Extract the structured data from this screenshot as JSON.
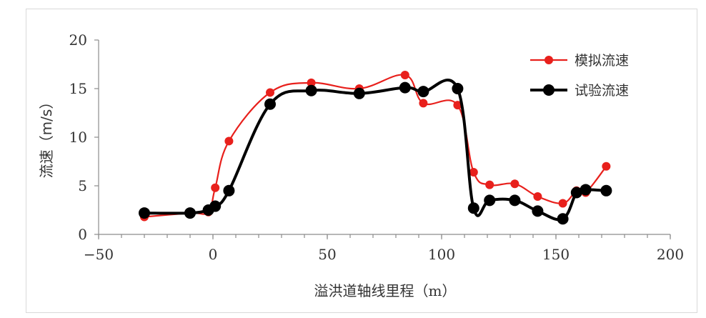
{
  "chart_data": {
    "type": "line",
    "xlabel": "溢洪道轴线里程（m）",
    "ylabel": "流速（m/s）",
    "xlim": [
      -50,
      200
    ],
    "ylim": [
      0,
      20
    ],
    "xticks": [
      -50,
      0,
      50,
      100,
      150,
      200
    ],
    "yticks": [
      0,
      5,
      10,
      15,
      20
    ],
    "xtick_labels": [
      "−50",
      "0",
      "50",
      "100",
      "150",
      "200"
    ],
    "ytick_labels": [
      "0",
      "5",
      "10",
      "15",
      "20"
    ],
    "legend_position": "top-right",
    "grid": false,
    "series": [
      {
        "name": "模拟流速",
        "color": "#e8201c",
        "x": [
          -30,
          -10,
          -2,
          1,
          7,
          25,
          43,
          64,
          84,
          92,
          107,
          114,
          121,
          132,
          142,
          153,
          159,
          163,
          172
        ],
        "y": [
          1.8,
          2.2,
          2.3,
          4.8,
          9.6,
          14.6,
          15.6,
          15.0,
          16.4,
          13.5,
          13.3,
          6.4,
          5.1,
          5.2,
          3.9,
          3.2,
          4.5,
          4.3,
          7.0
        ]
      },
      {
        "name": "试验流速",
        "color": "#000000",
        "x": [
          -30,
          -10,
          -2,
          1,
          7,
          25,
          43,
          64,
          84,
          92,
          107,
          114,
          121,
          132,
          142,
          153,
          159,
          163,
          172
        ],
        "y": [
          2.2,
          2.2,
          2.5,
          2.9,
          4.5,
          13.4,
          14.8,
          14.5,
          15.1,
          14.7,
          15.0,
          2.7,
          3.5,
          3.5,
          2.4,
          1.6,
          4.3,
          4.6,
          4.5
        ]
      }
    ]
  }
}
